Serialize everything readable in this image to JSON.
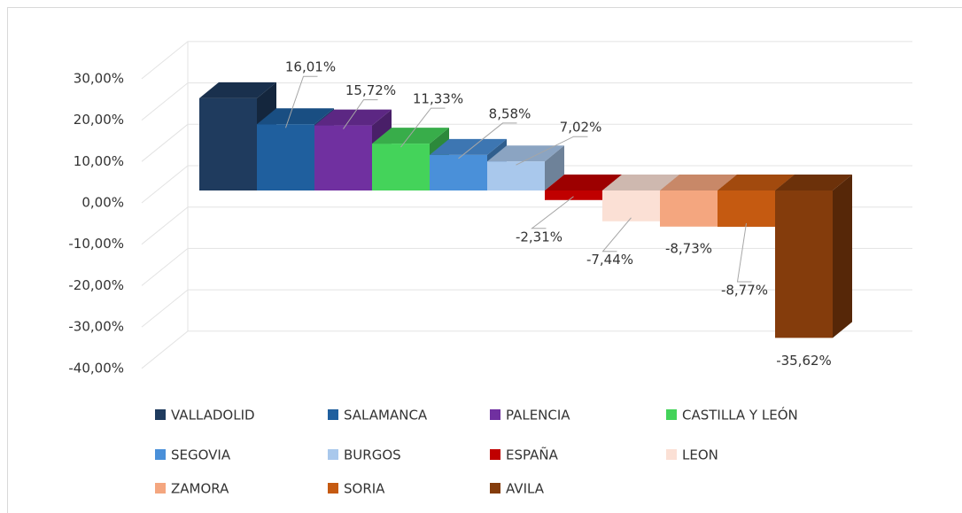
{
  "chart_data": {
    "type": "bar3d",
    "categories": [
      "VALLADOLID",
      "SALAMANCA",
      "PALENCIA",
      "CASTILLA Y LEÓN",
      "SEGOVIA",
      "BURGOS",
      "ESPAÑA",
      "LEON",
      "ZAMORA",
      "SORIA",
      "AVILA"
    ],
    "values": [
      22.3,
      16.01,
      15.72,
      11.33,
      8.58,
      7.02,
      -2.31,
      -7.44,
      -8.73,
      -8.77,
      -35.62
    ],
    "value_labels": [
      null,
      "16,01%",
      "15,72%",
      "11,33%",
      "8,58%",
      "7,02%",
      "-2,31%",
      "-7,44%",
      "-8,73%",
      "-8,77%",
      "-35,62%"
    ],
    "colors": [
      "#1f3b5e",
      "#1f5f9e",
      "#7030a0",
      "#44d35a",
      "#4a90d9",
      "#a9c8ec",
      "#c00000",
      "#fbe0d5",
      "#f4a67f",
      "#c55a11",
      "#843c0c"
    ],
    "ylim": [
      -40,
      30
    ],
    "yticks": [
      {
        "value": -40,
        "label": "-40,00%"
      },
      {
        "value": -30,
        "label": "-30,00%"
      },
      {
        "value": -20,
        "label": "-20,00%"
      },
      {
        "value": -10,
        "label": "-10,00%"
      },
      {
        "value": 0,
        "label": "0,00%"
      },
      {
        "value": 10,
        "label": "10,00%"
      },
      {
        "value": 20,
        "label": "20,00%"
      },
      {
        "value": 30,
        "label": "30,00%"
      }
    ],
    "grid": true,
    "legend": "bottom"
  }
}
